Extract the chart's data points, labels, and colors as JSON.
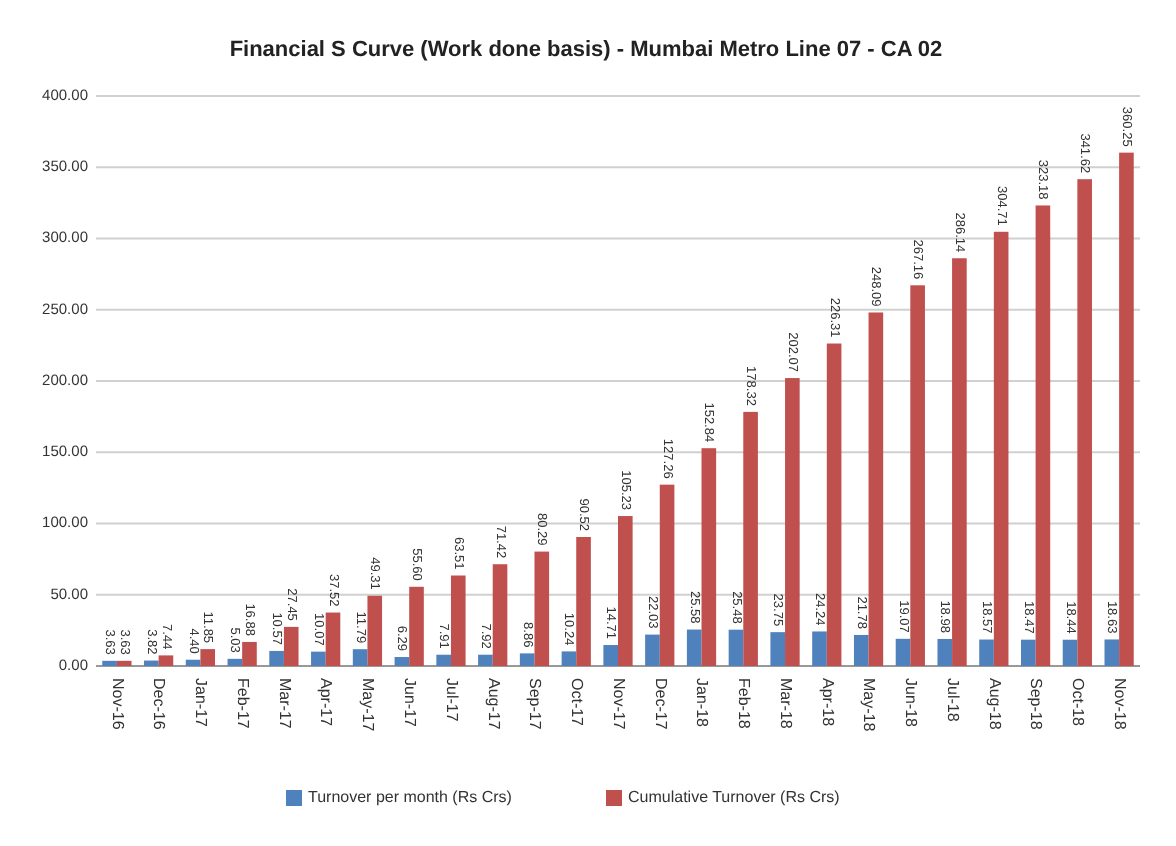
{
  "chart_data": {
    "type": "bar",
    "title": "Financial S Curve (Work done basis) - Mumbai Metro Line 07 - CA 02",
    "categories": [
      "Nov-16",
      "Dec-16",
      "Jan-17",
      "Feb-17",
      "Mar-17",
      "Apr-17",
      "May-17",
      "Jun-17",
      "Jul-17",
      "Aug-17",
      "Sep-17",
      "Oct-17",
      "Nov-17",
      "Dec-17",
      "Jan-18",
      "Feb-18",
      "Mar-18",
      "Apr-18",
      "May-18",
      "Jun-18",
      "Jul-18",
      "Aug-18",
      "Sep-18",
      "Oct-18",
      "Nov-18"
    ],
    "series": [
      {
        "name": "Turnover per month (Rs Crs)",
        "color": "#4f81bd",
        "values": [
          3.63,
          3.82,
          4.4,
          5.03,
          10.57,
          10.07,
          11.79,
          6.29,
          7.91,
          7.92,
          8.86,
          10.24,
          14.71,
          22.03,
          25.58,
          25.48,
          23.75,
          24.24,
          21.78,
          19.07,
          18.98,
          18.57,
          18.47,
          18.44,
          18.63
        ],
        "value_labels": [
          "3.63",
          "3.82",
          "4.40",
          "5.03",
          "10.57",
          "10.07",
          "11.79",
          "6.29",
          "7.91",
          "7.92",
          "8.86",
          "10.24",
          "14.71",
          "22.03",
          "25.58",
          "25.48",
          "23.75",
          "24.24",
          "21.78",
          "19.07",
          "18.98",
          "18.57",
          "18.47",
          "18.44",
          "18.63"
        ]
      },
      {
        "name": "Cumulative Turnover (Rs Crs)",
        "color": "#c0504d",
        "values": [
          3.63,
          7.44,
          11.85,
          16.88,
          27.45,
          37.52,
          49.31,
          55.6,
          63.51,
          71.42,
          80.29,
          90.52,
          105.23,
          127.26,
          152.84,
          178.32,
          202.07,
          226.31,
          248.09,
          267.16,
          286.14,
          304.71,
          323.18,
          341.62,
          360.25
        ],
        "value_labels": [
          "3.63",
          "7.44",
          "11.85",
          "16.88",
          "27.45",
          "37.52",
          "49.31",
          "55.60",
          "63.51",
          "71.42",
          "80.29",
          "90.52",
          "105.23",
          "127.26",
          "152.84",
          "178.32",
          "202.07",
          "226.31",
          "248.09",
          "267.16",
          "286.14",
          "304.71",
          "323.18",
          "341.62",
          "360.25"
        ]
      }
    ],
    "ylim": [
      0,
      400
    ],
    "yticks": [
      {
        "value": 0,
        "label": "0.00"
      },
      {
        "value": 50,
        "label": "50.00"
      },
      {
        "value": 100,
        "label": "100.00"
      },
      {
        "value": 150,
        "label": "150.00"
      },
      {
        "value": 200,
        "label": "200.00"
      },
      {
        "value": 250,
        "label": "250.00"
      },
      {
        "value": 300,
        "label": "300.00"
      },
      {
        "value": 350,
        "label": "350.00"
      },
      {
        "value": 400,
        "label": "400.00"
      }
    ],
    "grid": "y",
    "legend": "bottom"
  }
}
